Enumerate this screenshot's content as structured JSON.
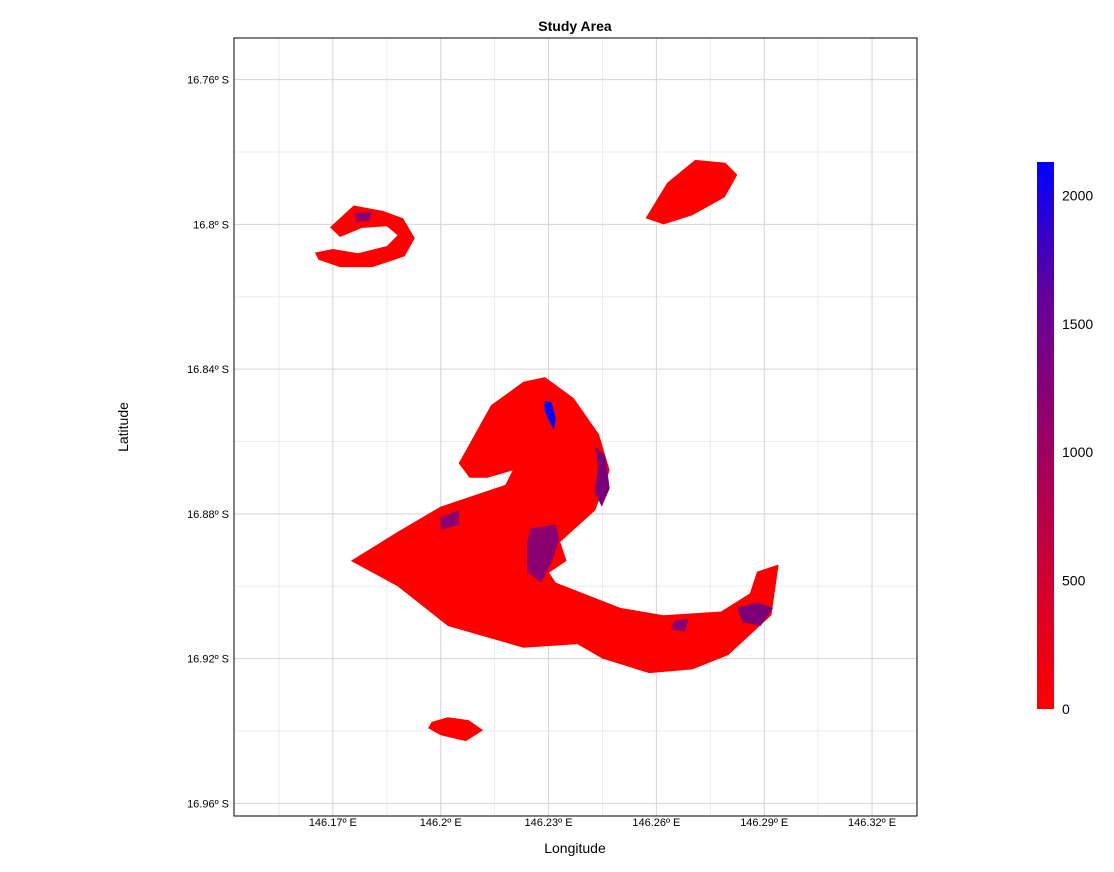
{
  "chart_data": {
    "type": "heatmap",
    "title": "Study Area",
    "xlabel": "Longitude",
    "ylabel": "Latitude",
    "x_ticks": [
      "146.17º E",
      "146.2º E",
      "146.23º E",
      "146.26º E",
      "146.29º E",
      "146.32º E"
    ],
    "y_ticks": [
      "16.76º S",
      "16.8º S",
      "16.84º S",
      "16.88º S",
      "16.92º S",
      "16.96º S"
    ],
    "x_tick_values": [
      146.17,
      146.2,
      146.23,
      146.26,
      146.29,
      146.32
    ],
    "y_tick_values": [
      -16.76,
      -16.8,
      -16.84,
      -16.88,
      -16.92,
      -16.96
    ],
    "xlim": [
      146.1425,
      146.3325
    ],
    "ylim": [
      -16.9635,
      -16.7485
    ],
    "grid": true,
    "colorbar": {
      "ticks": [
        "0",
        "500",
        "1000",
        "1500",
        "2000"
      ],
      "tick_values": [
        0,
        500,
        1000,
        1500,
        2000
      ],
      "range": [
        0,
        2130
      ],
      "color_low": "#ff0000",
      "color_high": "#0000ff"
    },
    "regions": [
      {
        "name": "northwest reef",
        "fill": "#ff0000",
        "points": [
          [
            146.1692,
            -16.8008
          ],
          [
            146.1758,
            -16.7948
          ],
          [
            146.184,
            -16.7963
          ],
          [
            146.1895,
            -16.7983
          ],
          [
            146.1928,
            -16.8038
          ],
          [
            146.19,
            -16.8088
          ],
          [
            146.181,
            -16.8118
          ],
          [
            146.172,
            -16.8118
          ],
          [
            146.166,
            -16.8098
          ],
          [
            146.165,
            -16.8078
          ],
          [
            146.17,
            -16.8068
          ],
          [
            146.177,
            -16.808
          ],
          [
            146.185,
            -16.806
          ],
          [
            146.188,
            -16.803
          ],
          [
            146.185,
            -16.8005
          ],
          [
            146.178,
            -16.801
          ],
          [
            146.172,
            -16.8035
          ]
        ]
      },
      {
        "name": "northeast reef",
        "fill": "#ff0000",
        "points": [
          [
            146.257,
            -16.7983
          ],
          [
            146.263,
            -16.7885
          ],
          [
            146.2708,
            -16.7822
          ],
          [
            146.2792,
            -16.783
          ],
          [
            146.2825,
            -16.7863
          ],
          [
            146.279,
            -16.7925
          ],
          [
            146.27,
            -16.7975
          ],
          [
            146.262,
            -16.8
          ]
        ]
      },
      {
        "name": "main reef arc",
        "fill": "#ff0000",
        "points": [
          [
            146.205,
            -16.866
          ],
          [
            146.214,
            -16.85
          ],
          [
            146.223,
            -16.8435
          ],
          [
            146.229,
            -16.8422
          ],
          [
            146.237,
            -16.848
          ],
          [
            146.244,
            -16.858
          ],
          [
            146.247,
            -16.868
          ],
          [
            146.243,
            -16.879
          ],
          [
            146.233,
            -16.888
          ],
          [
            146.228,
            -16.893
          ],
          [
            146.232,
            -16.899
          ],
          [
            146.25,
            -16.906
          ],
          [
            146.262,
            -16.908
          ],
          [
            146.278,
            -16.907
          ],
          [
            146.286,
            -16.902
          ],
          [
            146.288,
            -16.896
          ],
          [
            146.294,
            -16.894
          ],
          [
            146.292,
            -16.908
          ],
          [
            146.28,
            -16.919
          ],
          [
            146.27,
            -16.923
          ],
          [
            146.258,
            -16.924
          ],
          [
            146.245,
            -16.92
          ],
          [
            146.238,
            -16.916
          ],
          [
            146.223,
            -16.917
          ],
          [
            146.202,
            -16.911
          ],
          [
            146.188,
            -16.9
          ],
          [
            146.175,
            -16.893
          ],
          [
            146.188,
            -16.885
          ],
          [
            146.2,
            -16.878
          ],
          [
            146.218,
            -16.872
          ],
          [
            146.22,
            -16.868
          ],
          [
            146.213,
            -16.87
          ],
          [
            146.208,
            -16.87
          ]
        ]
      },
      {
        "name": "inner reef patch",
        "fill": "#ff0000",
        "points": [
          [
            146.208,
            -16.888
          ],
          [
            146.22,
            -16.883
          ],
          [
            146.232,
            -16.884
          ],
          [
            146.235,
            -16.893
          ],
          [
            146.226,
            -16.899
          ],
          [
            146.216,
            -16.898
          ],
          [
            146.21,
            -16.895
          ]
        ]
      },
      {
        "name": "south reef",
        "fill": "#ff0000",
        "points": [
          [
            146.1975,
            -16.9375
          ],
          [
            146.202,
            -16.9362
          ],
          [
            146.2078,
            -16.937
          ],
          [
            146.2118,
            -16.9398
          ],
          [
            146.207,
            -16.9428
          ],
          [
            146.2,
            -16.9412
          ],
          [
            146.1965,
            -16.9392
          ]
        ]
      },
      {
        "name": "deep channel north",
        "fill": "#0000ff",
        "points": [
          [
            146.229,
            -16.8488
          ],
          [
            146.2308,
            -16.8492
          ],
          [
            146.232,
            -16.8535
          ],
          [
            146.2315,
            -16.8568
          ],
          [
            146.23,
            -16.854
          ],
          [
            146.2288,
            -16.851
          ]
        ]
      },
      {
        "name": "deep patch east",
        "fill": "#7a0078",
        "points": [
          [
            146.243,
            -16.8615
          ],
          [
            146.2458,
            -16.864
          ],
          [
            146.247,
            -16.873
          ],
          [
            146.2448,
            -16.878
          ],
          [
            146.2428,
            -16.874
          ],
          [
            146.2438,
            -16.867
          ]
        ]
      },
      {
        "name": "deep patch west",
        "fill": "#8a0070",
        "points": [
          [
            146.1998,
            -16.881
          ],
          [
            146.205,
            -16.879
          ],
          [
            146.205,
            -16.883
          ],
          [
            146.2,
            -16.8845
          ]
        ]
      },
      {
        "name": "deep patch center",
        "fill": "#8a0070",
        "points": [
          [
            146.225,
            -16.884
          ],
          [
            146.232,
            -16.883
          ],
          [
            146.233,
            -16.887
          ],
          [
            146.231,
            -16.893
          ],
          [
            146.228,
            -16.899
          ],
          [
            146.224,
            -16.896
          ],
          [
            146.224,
            -16.888
          ]
        ]
      },
      {
        "name": "deep patch southeast",
        "fill": "#7a0078",
        "points": [
          [
            146.2825,
            -16.906
          ],
          [
            146.288,
            -16.9045
          ],
          [
            146.2925,
            -16.906
          ],
          [
            146.289,
            -16.911
          ],
          [
            146.284,
            -16.91
          ]
        ]
      },
      {
        "name": "deep patch southwest",
        "fill": "#8a0070",
        "points": [
          [
            146.265,
            -16.9095
          ],
          [
            146.269,
            -16.909
          ],
          [
            146.268,
            -16.9125
          ],
          [
            146.264,
            -16.912
          ]
        ]
      },
      {
        "name": "deep patch northwest reef",
        "fill": "#8a0070",
        "points": [
          [
            146.176,
            -16.7968
          ],
          [
            146.181,
            -16.7965
          ],
          [
            146.18,
            -16.799
          ],
          [
            146.1765,
            -16.7992
          ]
        ]
      }
    ]
  }
}
